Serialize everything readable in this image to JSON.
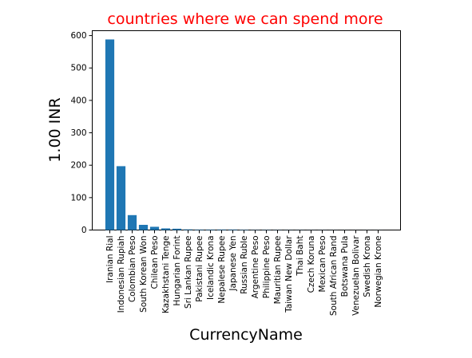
{
  "chart_data": {
    "type": "bar",
    "title": "countries where we can spend more",
    "title_color": "#ff0000",
    "xlabel": "CurrencyName",
    "ylabel": "1.00 INR",
    "bar_color": "#1f77b4",
    "ylim": [
      0,
      615
    ],
    "yticks": [
      "0",
      "100",
      "200",
      "300",
      "400",
      "500",
      "600"
    ],
    "grid": false,
    "categories": [
      "Iranian Rial",
      "Indonesian Rupiah",
      "Colombian Peso",
      "South Korean Won",
      "Chilean Peso",
      "Kazakhstani Tenge",
      "Hungarian Forint",
      "Sri Lankan Rupee",
      "Pakistani Rupee",
      "Icelandic Krona",
      "Nepalese Rupee",
      "Japanese Yen",
      "Russian Ruble",
      "Argentine Peso",
      "Philippine Peso",
      "Mauritian Rupee",
      "Taiwan New Dollar",
      "Thai Baht",
      "Czech Koruna",
      "Mexican Peso",
      "South African Rand",
      "Botswana Pula",
      "Venezuelan Bolivar",
      "Swedish Krona",
      "Norwegian Krone"
    ],
    "values": [
      588,
      197,
      46,
      16,
      10,
      5,
      4,
      2,
      1.5,
      1.5,
      1.6,
      1.6,
      1,
      0.6,
      0.7,
      0.5,
      0.4,
      0.4,
      0.3,
      0.3,
      0.2,
      0.15,
      0.1,
      0.13,
      0.12
    ]
  }
}
